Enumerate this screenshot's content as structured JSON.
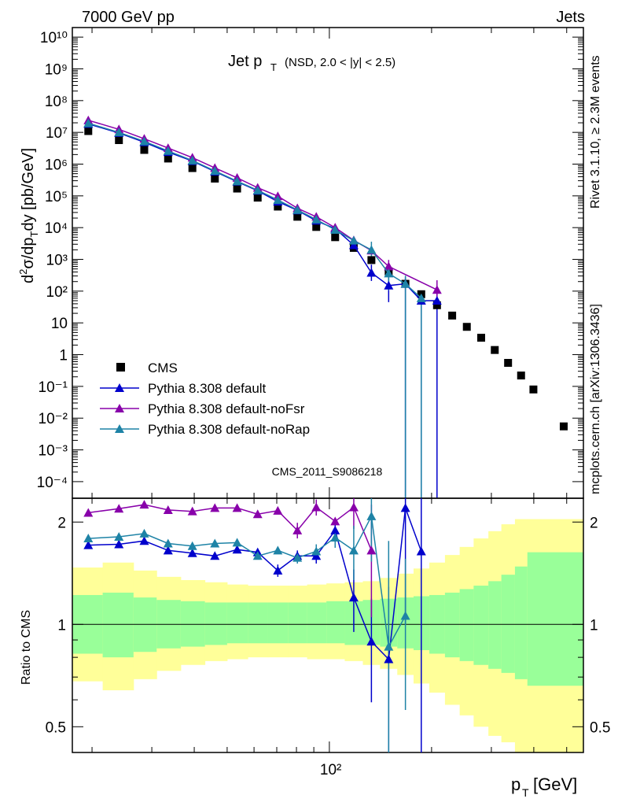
{
  "header": {
    "left": "7000 GeV pp",
    "right": "Jets"
  },
  "side": {
    "rivet": "Rivet 3.1.10, ≥ 2.3M events",
    "mcplots": "mcplots.cern.ch [arXiv:1306.3436]"
  },
  "watermark": "CMS_2011_S9086218",
  "chart_data": [
    {
      "type": "scatter",
      "title": "Jet p_T (NSD, 2.0 < |y| < 2.5)",
      "title_main": "Jet p",
      "title_sub": "T",
      "title_rest": "(NSD, 2.0 < |y| < 2.5)",
      "xlabel": "p_T [GeV]",
      "xlabel_main": "p",
      "xlabel_sub": "T",
      "xlabel_unit": "[GeV]",
      "ylabel": "d²σ/dp_T dy [pb/GeV]",
      "xscale": "log",
      "yscale": "log",
      "xlim": [
        17.5,
        560
      ],
      "ylim": [
        3e-05,
        20000000000
      ],
      "x_tick_label": "10²",
      "y_tick_labels": [
        "10¹⁰",
        "10⁹",
        "10⁸",
        "10⁷",
        "10⁶",
        "10⁵",
        "10⁴",
        "10³",
        "10²",
        "10",
        "1",
        "10⁻¹",
        "10⁻²",
        "10⁻³",
        "10⁻⁴"
      ],
      "legend_position": "bottom-left",
      "series": [
        {
          "name": "CMS",
          "color": "#000000",
          "marker": "square",
          "x": [
            19.5,
            24,
            28.5,
            33.5,
            39.5,
            46,
            53.5,
            61.5,
            70.5,
            80.5,
            91.5,
            104,
            118,
            133,
            149.5,
            167.5,
            186.5,
            207.5,
            230,
            254,
            280,
            307,
            336,
            367,
            399,
            490
          ],
          "y": [
            11000000,
            5700000,
            2800000,
            1500000,
            750000,
            350000,
            170000,
            88000,
            46000,
            22000,
            10500,
            5000,
            2300,
            950,
            420,
            170,
            80,
            36,
            17,
            7.5,
            3.4,
            1.4,
            0.55,
            0.22,
            0.08,
            0.0055
          ]
        },
        {
          "name": "Pythia 8.308 default",
          "color": "#0000cc",
          "marker": "triangle",
          "x": [
            19.5,
            24,
            28.5,
            33.5,
            39.5,
            46,
            53.5,
            61.5,
            70.5,
            80.5,
            91.5,
            104,
            118,
            133,
            149.5,
            167.5,
            186.5,
            207.5
          ],
          "y": [
            18500000,
            9600000,
            4900000,
            2400000,
            1250000,
            580000,
            280000,
            145000,
            66000,
            35000,
            16500,
            9300,
            2800,
            380,
            150,
            170,
            50,
            50
          ]
        },
        {
          "name": "Pythia 8.308 default-noFsr",
          "color": "#8800aa",
          "marker": "triangle",
          "x": [
            19.5,
            24,
            28.5,
            33.5,
            39.5,
            46,
            53.5,
            61.5,
            70.5,
            80.5,
            91.5,
            104,
            118,
            133,
            149.5,
            207.5
          ],
          "y": [
            24000000,
            12500000,
            6300000,
            3200000,
            1600000,
            760000,
            370000,
            180000,
            98000,
            41000,
            22000,
            10000,
            4000,
            1900,
            600,
            110
          ]
        },
        {
          "name": "Pythia 8.308 default-noRap",
          "color": "#1e83a6",
          "marker": "triangle",
          "x": [
            19.5,
            24,
            28.5,
            33.5,
            39.5,
            46,
            53.5,
            61.5,
            70.5,
            80.5,
            91.5,
            104,
            118,
            133,
            149.5,
            167.5,
            186.5
          ],
          "y": [
            19500000,
            10000000,
            5200000,
            2600000,
            1300000,
            610000,
            290000,
            150000,
            74000,
            36000,
            18000,
            8500,
            3900,
            2000,
            360,
            170,
            60
          ]
        }
      ]
    },
    {
      "type": "scatter",
      "ylabel": "Ratio to CMS",
      "xscale": "log",
      "yscale": "log",
      "xlim": [
        17.5,
        560
      ],
      "ylim": [
        0.42,
        2.35
      ],
      "y_tick_labels": [
        "2",
        "1",
        "0.5"
      ],
      "x_tick_label": "10²",
      "bands": {
        "x_edges": [
          17.5,
          21.5,
          26.5,
          31,
          36.5,
          43,
          50,
          57.5,
          66,
          75.5,
          86,
          98,
          111,
          125.5,
          141,
          158.5,
          177,
          197,
          219,
          242,
          266,
          294,
          321,
          352,
          383,
          560
        ],
        "green_lo": [
          0.82,
          0.8,
          0.83,
          0.85,
          0.86,
          0.87,
          0.88,
          0.88,
          0.88,
          0.88,
          0.88,
          0.88,
          0.87,
          0.87,
          0.86,
          0.85,
          0.84,
          0.82,
          0.8,
          0.78,
          0.76,
          0.74,
          0.72,
          0.69,
          0.66
        ],
        "green_hi": [
          1.22,
          1.24,
          1.2,
          1.18,
          1.17,
          1.16,
          1.16,
          1.16,
          1.16,
          1.16,
          1.16,
          1.17,
          1.17,
          1.18,
          1.19,
          1.2,
          1.21,
          1.22,
          1.24,
          1.27,
          1.3,
          1.34,
          1.4,
          1.48,
          1.63
        ],
        "yellow_lo": [
          0.68,
          0.64,
          0.69,
          0.73,
          0.76,
          0.78,
          0.79,
          0.8,
          0.8,
          0.8,
          0.79,
          0.79,
          0.78,
          0.76,
          0.74,
          0.71,
          0.67,
          0.63,
          0.58,
          0.54,
          0.5,
          0.47,
          0.45,
          0.42,
          0.42
        ],
        "yellow_hi": [
          1.47,
          1.52,
          1.44,
          1.38,
          1.35,
          1.33,
          1.31,
          1.3,
          1.3,
          1.3,
          1.31,
          1.32,
          1.33,
          1.34,
          1.37,
          1.41,
          1.46,
          1.52,
          1.6,
          1.69,
          1.79,
          1.88,
          1.97,
          2.04,
          2.04
        ],
        "green_color": "#99ff99",
        "yellow_color": "#ffff99"
      },
      "series": [
        {
          "name": "Pythia 8.308 default",
          "color": "#0000cc",
          "x": [
            19.5,
            24,
            28.5,
            33.5,
            39.5,
            46,
            53.5,
            61.5,
            70.5,
            80.5,
            91.5,
            104,
            118,
            133,
            149.5,
            167.5,
            186.5
          ],
          "y": [
            1.71,
            1.72,
            1.76,
            1.65,
            1.62,
            1.59,
            1.66,
            1.63,
            1.44,
            1.59,
            1.59,
            1.89,
            1.2,
            0.89,
            0.79,
            2.2,
            1.64
          ]
        },
        {
          "name": "Pythia 8.308 default-noFsr",
          "color": "#8800aa",
          "x": [
            19.5,
            24,
            28.5,
            33.5,
            39.5,
            46,
            53.5,
            61.5,
            70.5,
            80.5,
            91.5,
            104,
            118,
            133
          ],
          "y": [
            2.13,
            2.19,
            2.25,
            2.17,
            2.15,
            2.2,
            2.2,
            2.11,
            2.16,
            1.89,
            2.21,
            2.01,
            2.21,
            1.65
          ]
        },
        {
          "name": "Pythia 8.308 default-noRap",
          "color": "#1e83a6",
          "x": [
            19.5,
            24,
            28.5,
            33.5,
            39.5,
            46,
            53.5,
            61.5,
            70.5,
            80.5,
            91.5,
            104,
            118,
            133,
            149.5,
            167.5
          ],
          "y": [
            1.79,
            1.81,
            1.85,
            1.73,
            1.7,
            1.73,
            1.74,
            1.59,
            1.65,
            1.57,
            1.64,
            1.8,
            1.65,
            2.08,
            0.86,
            1.06
          ]
        }
      ]
    }
  ]
}
